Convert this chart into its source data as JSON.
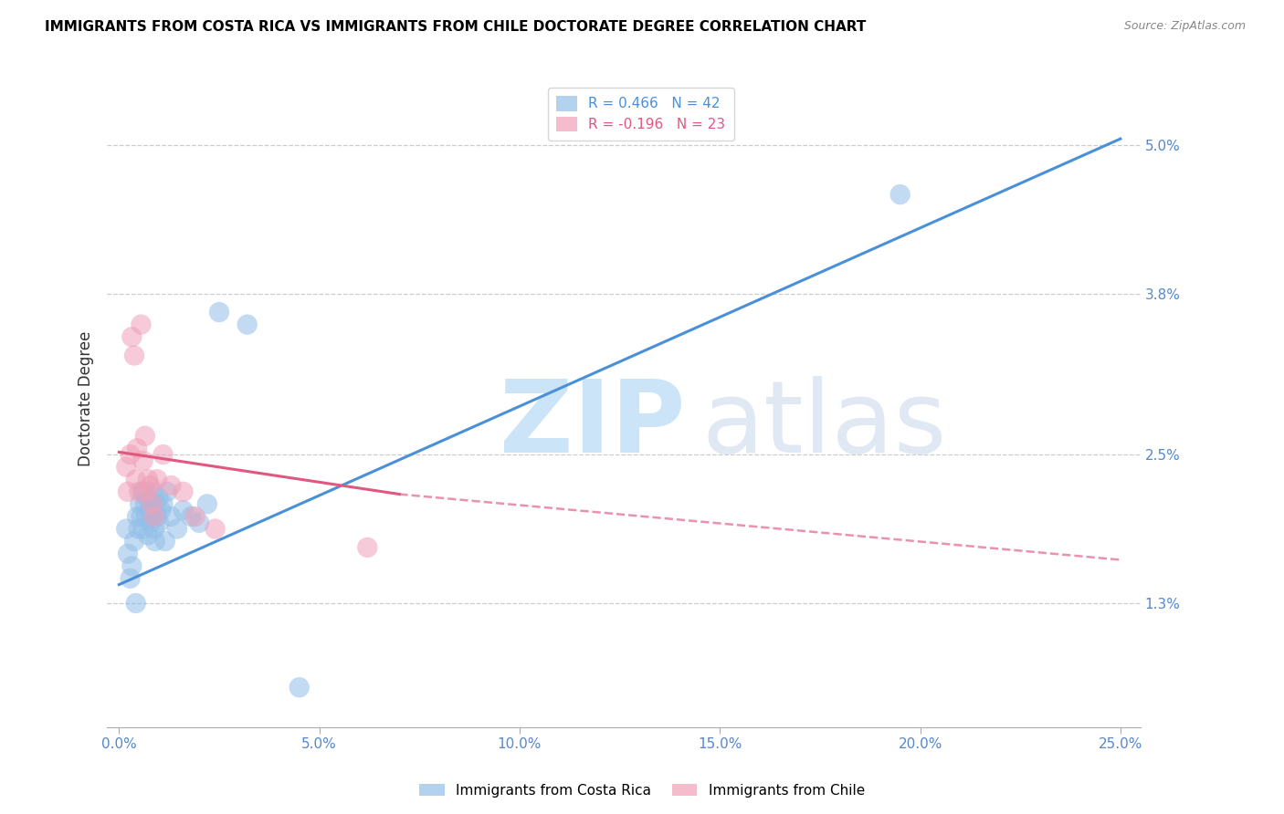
{
  "title": "IMMIGRANTS FROM COSTA RICA VS IMMIGRANTS FROM CHILE DOCTORATE DEGREE CORRELATION CHART",
  "source": "Source: ZipAtlas.com",
  "xlabel_ticks": [
    "0.0%",
    "5.0%",
    "10.0%",
    "15.0%",
    "20.0%",
    "25.0%"
  ],
  "xlabel_vals": [
    0.0,
    5.0,
    10.0,
    15.0,
    20.0,
    25.0
  ],
  "ylabel_ticks": [
    "1.3%",
    "2.5%",
    "3.8%",
    "5.0%"
  ],
  "ylabel_vals": [
    1.3,
    2.5,
    3.8,
    5.0
  ],
  "ylabel_label": "Doctorate Degree",
  "xlim": [
    -0.3,
    25.5
  ],
  "ylim": [
    0.3,
    5.6
  ],
  "legend_items": [
    {
      "label": "R = 0.466   N = 42",
      "color": "#92bfe8"
    },
    {
      "label": "R = -0.196   N = 23",
      "color": "#f0a0b8"
    }
  ],
  "legend_labels_bottom": [
    "Immigrants from Costa Rica",
    "Immigrants from Chile"
  ],
  "cr_color": "#92bfe8",
  "ch_color": "#f0a0b8",
  "cr_line_color": "#4a90d9",
  "ch_line_color": "#e05880",
  "cr_trendline": [
    0.0,
    25.0,
    1.45,
    5.05
  ],
  "ch_trendline_solid": [
    0.0,
    7.0,
    2.52,
    2.18
  ],
  "ch_trendline_dash": [
    7.0,
    25.0,
    2.18,
    1.65
  ],
  "cr_x": [
    0.18,
    0.22,
    0.28,
    0.32,
    0.38,
    0.42,
    0.45,
    0.48,
    0.52,
    0.55,
    0.58,
    0.6,
    0.62,
    0.65,
    0.68,
    0.7,
    0.72,
    0.75,
    0.78,
    0.8,
    0.82,
    0.85,
    0.88,
    0.9,
    0.92,
    0.95,
    0.98,
    1.0,
    1.05,
    1.1,
    1.15,
    1.2,
    1.3,
    1.45,
    1.6,
    1.8,
    2.0,
    2.2,
    2.5,
    3.2,
    4.5,
    19.5
  ],
  "cr_y": [
    1.9,
    1.7,
    1.5,
    1.6,
    1.8,
    1.3,
    2.0,
    1.9,
    2.1,
    2.0,
    2.2,
    1.9,
    2.2,
    2.1,
    2.0,
    2.15,
    1.85,
    2.05,
    1.95,
    2.1,
    2.0,
    2.2,
    1.9,
    1.8,
    2.1,
    2.0,
    2.15,
    1.95,
    2.05,
    2.1,
    1.8,
    2.2,
    2.0,
    1.9,
    2.05,
    2.0,
    1.95,
    2.1,
    3.65,
    3.55,
    0.62,
    4.6
  ],
  "ch_x": [
    0.18,
    0.22,
    0.28,
    0.32,
    0.38,
    0.42,
    0.45,
    0.5,
    0.55,
    0.6,
    0.65,
    0.68,
    0.72,
    0.78,
    0.82,
    0.88,
    0.95,
    1.1,
    1.3,
    1.6,
    1.9,
    2.4,
    6.2
  ],
  "ch_y": [
    2.4,
    2.2,
    2.5,
    3.45,
    3.3,
    2.3,
    2.55,
    2.2,
    3.55,
    2.45,
    2.65,
    2.2,
    2.3,
    2.25,
    2.1,
    2.0,
    2.3,
    2.5,
    2.25,
    2.2,
    2.0,
    1.9,
    1.75
  ]
}
